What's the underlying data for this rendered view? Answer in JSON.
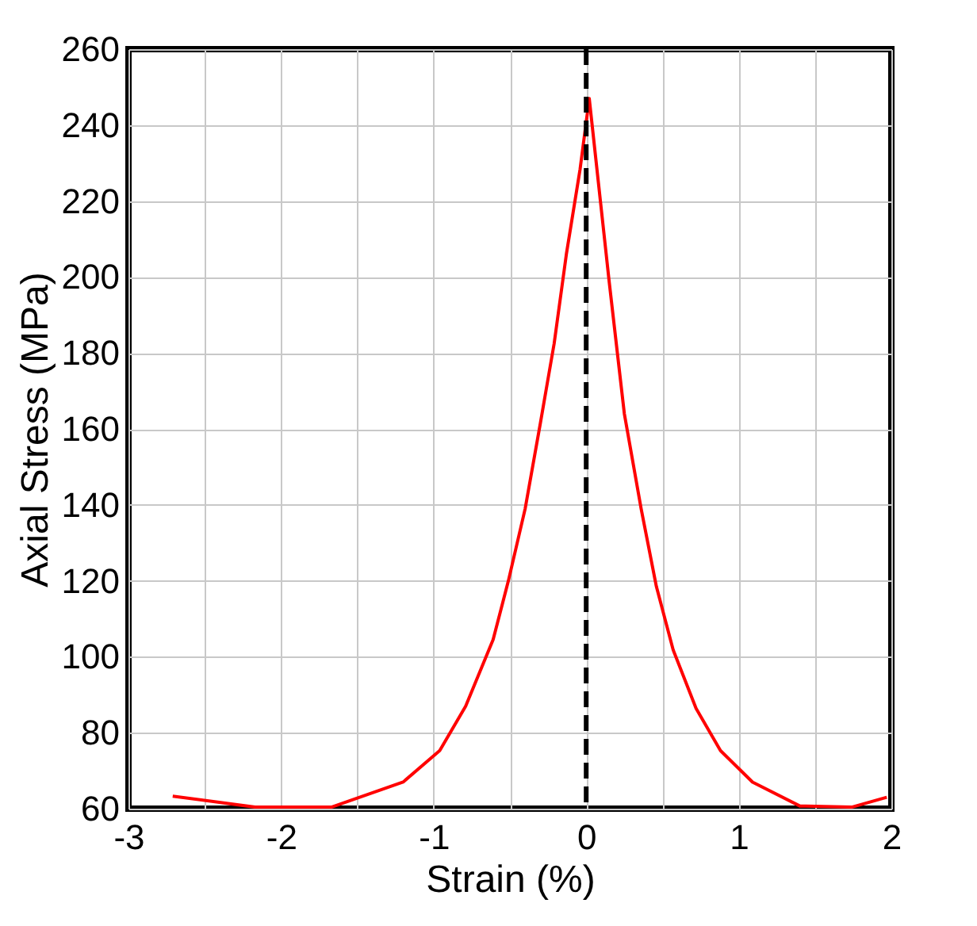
{
  "chart_data": {
    "type": "line",
    "xlabel": "Strain (%)",
    "ylabel": "Axial Stress (MPa)",
    "x": [
      -2.71,
      -2.17,
      -1.67,
      -1.2,
      -0.96,
      -0.79,
      -0.61,
      -0.51,
      -0.4,
      -0.3,
      -0.21,
      -0.13,
      -0.04,
      0.02,
      0.15,
      0.25,
      0.36,
      0.46,
      0.57,
      0.72,
      0.88,
      1.09,
      1.4,
      1.74,
      1.97
    ],
    "series": [
      {
        "color": "#ff0000",
        "values": [
          63.3,
          60.4,
          60.4,
          67,
          75.3,
          87,
          104.5,
          120,
          139,
          161.6,
          182.5,
          206,
          228.4,
          247,
          199,
          164,
          139,
          118.5,
          101.8,
          86.4,
          75.3,
          67,
          60.7,
          60.4,
          63
        ]
      }
    ],
    "xlim": [
      -3,
      2
    ],
    "ylim": [
      60,
      260
    ],
    "xticks": [
      -3,
      {
        "value": -2.5,
        "label": null
      },
      -2,
      {
        "value": -1.5,
        "label": null
      },
      -1,
      {
        "value": -0.5,
        "label": null
      },
      0,
      {
        "value": 0.5,
        "label": null
      },
      1,
      {
        "value": 1.5,
        "label": null
      },
      2
    ],
    "yticks": [
      60,
      80,
      100,
      120,
      140,
      160,
      180,
      200,
      220,
      240,
      260
    ],
    "ref_lines": [
      {
        "axis": "x",
        "value": 0,
        "color": "#000000",
        "line_style": "dashed"
      }
    ],
    "grid": true,
    "marker": "none",
    "line_style": "solid"
  }
}
